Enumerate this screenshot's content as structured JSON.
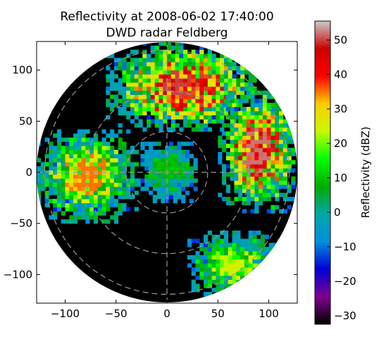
{
  "chart_data": {
    "type": "heatmap",
    "title_lines": [
      "Reflectivity at 2008-06-02 17:40:00",
      "DWD radar Feldberg"
    ],
    "xlabel": "",
    "ylabel": "",
    "xlim": [
      -128,
      128
    ],
    "ylim": [
      -128,
      128
    ],
    "xticks": [
      {
        "value": -100,
        "label": "−100"
      },
      {
        "value": -50,
        "label": "−50"
      },
      {
        "value": 0,
        "label": "0"
      },
      {
        "value": 50,
        "label": "50"
      },
      {
        "value": 100,
        "label": "100"
      }
    ],
    "yticks": [
      {
        "value": 100,
        "label": "100"
      },
      {
        "value": 50,
        "label": "50"
      },
      {
        "value": 0,
        "label": "0"
      },
      {
        "value": -50,
        "label": "−50"
      },
      {
        "value": -100,
        "label": "−100"
      }
    ],
    "radar_range_km": 128,
    "range_rings_km": [
      40,
      80,
      120
    ],
    "grid": true,
    "colorbar": {
      "label": "Reflectivity (dBZ)",
      "vmin": -32.5,
      "vmax": 55.5,
      "ticks": [
        {
          "value": 50,
          "label": "50"
        },
        {
          "value": 40,
          "label": "40"
        },
        {
          "value": 30,
          "label": "30"
        },
        {
          "value": 20,
          "label": "20"
        },
        {
          "value": 10,
          "label": "10"
        },
        {
          "value": 0,
          "label": "0"
        },
        {
          "value": -10,
          "label": "−10"
        },
        {
          "value": -20,
          "label": "−20"
        },
        {
          "value": -30,
          "label": "−30"
        }
      ],
      "colormap": "spectral",
      "colors": [
        "#000000",
        "#80008f",
        "#0000d6",
        "#0090dd",
        "#00a7a7",
        "#00aa00",
        "#00ff00",
        "#c8f900",
        "#ffcc00",
        "#ff0000",
        "#cc0000",
        "#cccccc"
      ]
    },
    "background_value_dbz": -32,
    "echo_regions": [
      {
        "name": "north-northeast band",
        "x": [
          -60,
          90
        ],
        "y": [
          40,
          125
        ],
        "max_dbz": 50
      },
      {
        "name": "east cells",
        "x": [
          50,
          125
        ],
        "y": [
          -40,
          80
        ],
        "max_dbz": 52
      },
      {
        "name": "west band",
        "x": [
          -128,
          -30
        ],
        "y": [
          -50,
          40
        ],
        "max_dbz": 35
      },
      {
        "name": "southeast weak echoes",
        "x": [
          20,
          110
        ],
        "y": [
          -125,
          -60
        ],
        "max_dbz": 25
      },
      {
        "name": "near-radar clutter",
        "x": [
          -30,
          30
        ],
        "y": [
          -30,
          30
        ],
        "max_dbz": 10
      }
    ]
  }
}
